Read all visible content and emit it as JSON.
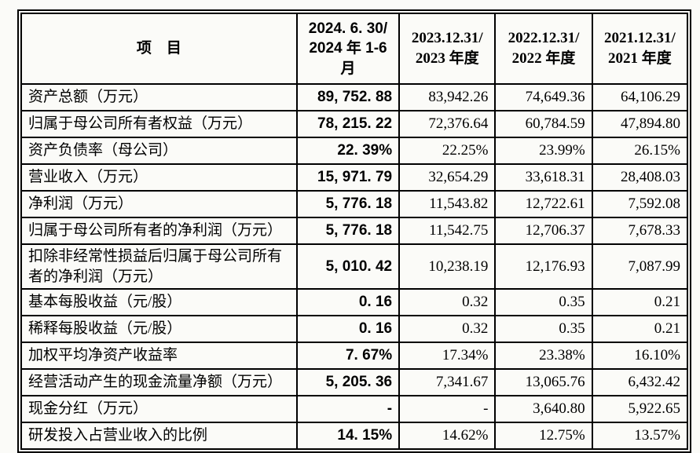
{
  "page": {
    "background": "#fbfbf8",
    "border_color": "#000000",
    "text_color": "#000000"
  },
  "table": {
    "columns": [
      {
        "id": "item",
        "label": "项　目"
      },
      {
        "id": "period_2024",
        "label": "2024. 6. 30/\n2024 年 1-6\n月"
      },
      {
        "id": "period_2023",
        "label": "2023.12.31/\n2023 年度"
      },
      {
        "id": "period_2022",
        "label": "2022.12.31/\n2022 年度"
      },
      {
        "id": "period_2021",
        "label": "2021.12.31/\n2021 年度"
      }
    ],
    "rows": [
      {
        "label": "资产总额（万元）",
        "values": [
          "89, 752. 88",
          "83,942.26",
          "74,649.36",
          "64,106.29"
        ]
      },
      {
        "label": "归属于母公司所有者权益（万元）",
        "values": [
          "78, 215. 22",
          "72,376.64",
          "60,784.59",
          "47,894.80"
        ]
      },
      {
        "label": "资产负债率（母公司）",
        "values": [
          "22. 39%",
          "22.25%",
          "23.99%",
          "26.15%"
        ]
      },
      {
        "label": "营业收入（万元）",
        "values": [
          "15, 971. 79",
          "32,654.29",
          "33,618.31",
          "28,408.03"
        ]
      },
      {
        "label": "净利润（万元）",
        "values": [
          "5, 776. 18",
          "11,543.82",
          "12,722.61",
          "7,592.08"
        ]
      },
      {
        "label": "归属于母公司所有者的净利润（万元）",
        "values": [
          "5, 776. 18",
          "11,542.75",
          "12,706.37",
          "7,678.33"
        ]
      },
      {
        "label": "扣除非经常性损益后归属于母公司所有者的净利润（万元）",
        "values": [
          "5, 010. 42",
          "10,238.19",
          "12,176.93",
          "7,087.99"
        ]
      },
      {
        "label": "基本每股收益（元/股）",
        "values": [
          "0. 16",
          "0.32",
          "0.35",
          "0.21"
        ]
      },
      {
        "label": "稀释每股收益（元/股）",
        "values": [
          "0. 16",
          "0.32",
          "0.35",
          "0.21"
        ]
      },
      {
        "label": "加权平均净资产收益率",
        "values": [
          "7. 67%",
          "17.34%",
          "23.38%",
          "16.10%"
        ]
      },
      {
        "label": "经营活动产生的现金流量净额（万元）",
        "values": [
          "5, 205. 36",
          "7,341.67",
          "13,065.76",
          "6,432.42"
        ]
      },
      {
        "label": "现金分红（万元）",
        "values": [
          "-",
          "-",
          "3,640.80",
          "5,922.65"
        ]
      },
      {
        "label": "研发投入占营业收入的比例",
        "values": [
          "14. 15%",
          "14.62%",
          "12.75%",
          "13.57%"
        ]
      }
    ]
  }
}
